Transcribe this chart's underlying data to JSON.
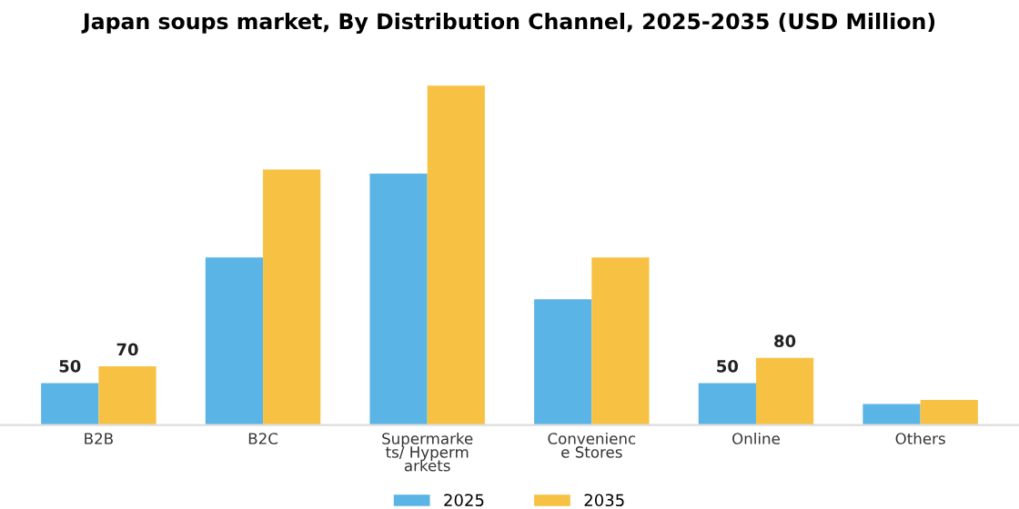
{
  "chart_data": {
    "type": "bar",
    "title": "Japan soups market, By Distribution Channel, 2025-2035 (USD Million)",
    "categories": [
      "B2B",
      "B2C",
      "Supermarke\nts/ Hyperm\narkets",
      "Convenienc\ne Stores",
      "Online",
      "Others"
    ],
    "series": [
      {
        "name": "2025",
        "color": "#5ab4e5",
        "values": [
          50,
          200,
          300,
          150,
          50,
          25
        ],
        "value_labels": [
          "50",
          null,
          null,
          null,
          "50",
          null
        ]
      },
      {
        "name": "2035",
        "color": "#f7c244",
        "values": [
          70,
          305,
          405,
          200,
          80,
          30
        ],
        "value_labels": [
          "70",
          null,
          null,
          null,
          "80",
          null
        ]
      }
    ],
    "legend": "bottom",
    "grid": false
  }
}
